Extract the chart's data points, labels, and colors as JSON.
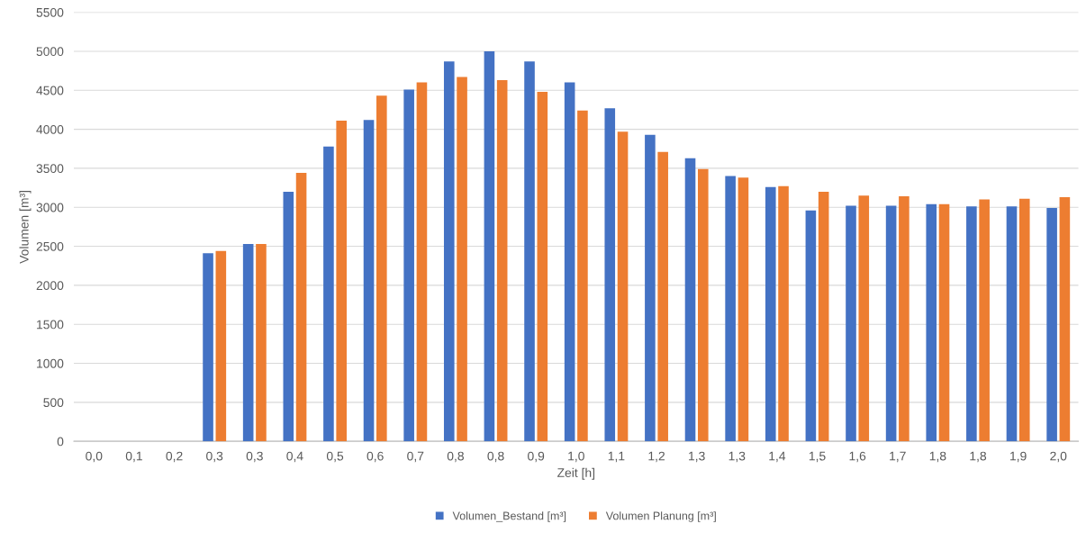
{
  "chart_data": {
    "type": "bar",
    "xlabel": "Zeit [h]",
    "ylabel": "Volumen [m³]",
    "categories": [
      "0,0",
      "0,1",
      "0,2",
      "0,3",
      "0,3",
      "0,4",
      "0,5",
      "0,6",
      "0,7",
      "0,8",
      "0,8",
      "0,9",
      "1,0",
      "1,1",
      "1,2",
      "1,3",
      "1,3",
      "1,4",
      "1,5",
      "1,6",
      "1,7",
      "1,8",
      "1,8",
      "1,9",
      "2,0"
    ],
    "series": [
      {
        "name": "Volumen_Bestand [m³]",
        "color": "#4472c4",
        "values": [
          0,
          0,
          0,
          2410,
          2530,
          3200,
          3780,
          4120,
          4510,
          4870,
          5000,
          4870,
          4600,
          4270,
          3930,
          3630,
          3400,
          3260,
          2960,
          3020,
          3020,
          3040,
          3010,
          3010,
          2990
        ]
      },
      {
        "name": "Volumen Planung [m³]",
        "color": "#ed7d31",
        "values": [
          0,
          0,
          0,
          2440,
          2530,
          3440,
          4110,
          4430,
          4600,
          4670,
          4630,
          4480,
          4240,
          3970,
          3710,
          3490,
          3380,
          3270,
          3200,
          3150,
          3140,
          3040,
          3100,
          3110,
          3130
        ]
      }
    ],
    "ylim": [
      0,
      5500
    ],
    "yticks": [
      0,
      500,
      1000,
      1500,
      2000,
      2500,
      3000,
      3500,
      4000,
      4500,
      5000,
      5500
    ],
    "grid": "y",
    "legend": "bottom"
  }
}
